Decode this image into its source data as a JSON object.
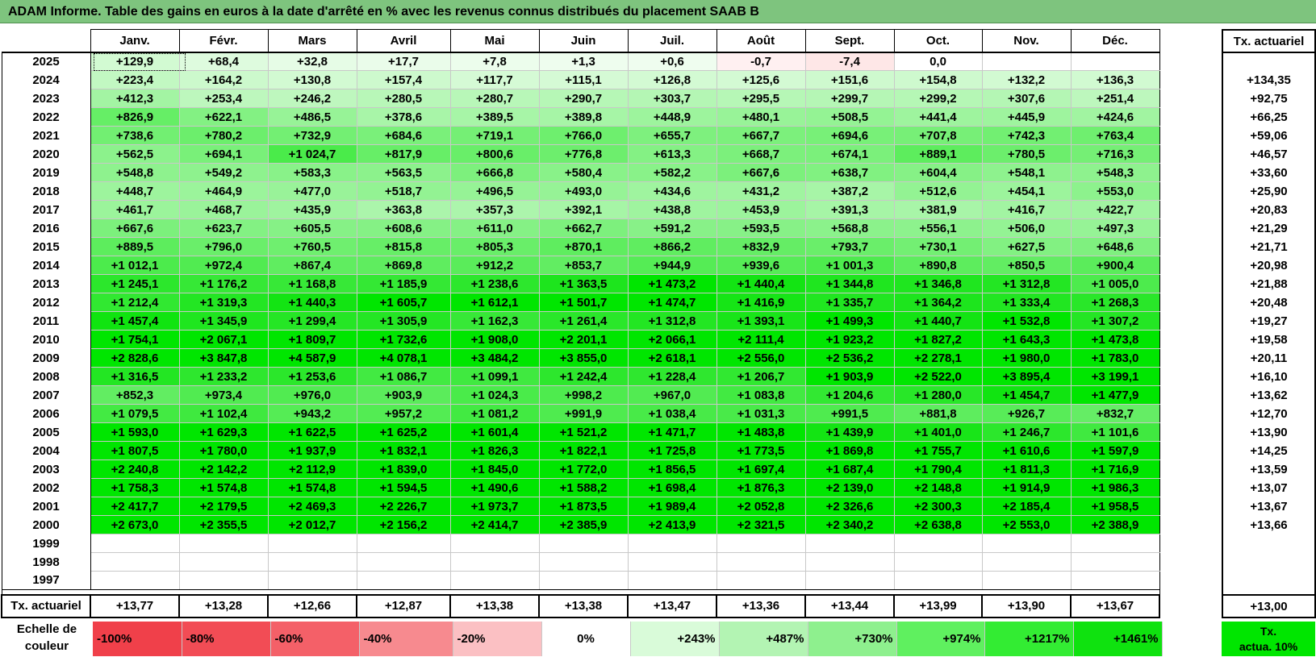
{
  "title": "ADAM Informe. Table des gains en euros à la date d'arrêté en % avec les revenus connus distribués du placement SAAB B",
  "months": [
    "Janv.",
    "Févr.",
    "Mars",
    "Avril",
    "Mai",
    "Juin",
    "Juil.",
    "Août",
    "Sept.",
    "Oct.",
    "Nov.",
    "Déc."
  ],
  "tx_header": "Tx. actuariel",
  "footer_label": "Tx. actuariel",
  "rows": [
    {
      "year": "2025",
      "values": [
        "+129,9",
        "+68,4",
        "+32,8",
        "+17,7",
        "+7,8",
        "+1,3",
        "+0,6",
        "-0,7",
        "-7,4",
        "0,0",
        "",
        ""
      ],
      "tx": ""
    },
    {
      "year": "2024",
      "values": [
        "+223,4",
        "+164,2",
        "+130,8",
        "+157,4",
        "+117,7",
        "+115,1",
        "+126,8",
        "+125,6",
        "+151,6",
        "+154,8",
        "+132,2",
        "+136,3"
      ],
      "tx": "+134,35"
    },
    {
      "year": "2023",
      "values": [
        "+412,3",
        "+253,4",
        "+246,2",
        "+280,5",
        "+280,7",
        "+290,7",
        "+303,7",
        "+295,5",
        "+299,7",
        "+299,2",
        "+307,6",
        "+251,4"
      ],
      "tx": "+92,75"
    },
    {
      "year": "2022",
      "values": [
        "+826,9",
        "+622,1",
        "+486,5",
        "+378,6",
        "+389,5",
        "+389,8",
        "+448,9",
        "+480,1",
        "+508,5",
        "+441,4",
        "+445,9",
        "+424,6"
      ],
      "tx": "+66,25"
    },
    {
      "year": "2021",
      "values": [
        "+738,6",
        "+780,2",
        "+732,9",
        "+684,6",
        "+719,1",
        "+766,0",
        "+655,7",
        "+667,7",
        "+694,6",
        "+707,8",
        "+742,3",
        "+763,4"
      ],
      "tx": "+59,06"
    },
    {
      "year": "2020",
      "values": [
        "+562,5",
        "+694,1",
        "+1 024,7",
        "+817,9",
        "+800,6",
        "+776,8",
        "+613,3",
        "+668,7",
        "+674,1",
        "+889,1",
        "+780,5",
        "+716,3"
      ],
      "tx": "+46,57"
    },
    {
      "year": "2019",
      "values": [
        "+548,8",
        "+549,2",
        "+583,3",
        "+563,5",
        "+666,8",
        "+580,4",
        "+582,2",
        "+667,6",
        "+638,7",
        "+604,4",
        "+548,1",
        "+548,3"
      ],
      "tx": "+33,60"
    },
    {
      "year": "2018",
      "values": [
        "+448,7",
        "+464,9",
        "+477,0",
        "+518,7",
        "+496,5",
        "+493,0",
        "+434,6",
        "+431,2",
        "+387,2",
        "+512,6",
        "+454,1",
        "+553,0"
      ],
      "tx": "+25,90"
    },
    {
      "year": "2017",
      "values": [
        "+461,7",
        "+468,7",
        "+435,9",
        "+363,8",
        "+357,3",
        "+392,1",
        "+438,8",
        "+453,9",
        "+391,3",
        "+381,9",
        "+416,7",
        "+422,7"
      ],
      "tx": "+20,83"
    },
    {
      "year": "2016",
      "values": [
        "+667,6",
        "+623,7",
        "+605,5",
        "+608,6",
        "+611,0",
        "+662,7",
        "+591,2",
        "+593,5",
        "+568,8",
        "+556,1",
        "+506,0",
        "+497,3"
      ],
      "tx": "+21,29"
    },
    {
      "year": "2015",
      "values": [
        "+889,5",
        "+796,0",
        "+760,5",
        "+815,8",
        "+805,3",
        "+870,1",
        "+866,2",
        "+832,9",
        "+793,7",
        "+730,1",
        "+627,5",
        "+648,6"
      ],
      "tx": "+21,71"
    },
    {
      "year": "2014",
      "values": [
        "+1 012,1",
        "+972,4",
        "+867,4",
        "+869,8",
        "+912,2",
        "+853,7",
        "+944,9",
        "+939,6",
        "+1 001,3",
        "+890,8",
        "+850,5",
        "+900,4"
      ],
      "tx": "+20,98"
    },
    {
      "year": "2013",
      "values": [
        "+1 245,1",
        "+1 176,2",
        "+1 168,8",
        "+1 185,9",
        "+1 238,6",
        "+1 363,5",
        "+1 473,2",
        "+1 440,4",
        "+1 344,8",
        "+1 346,8",
        "+1 312,8",
        "+1 005,0"
      ],
      "tx": "+21,88"
    },
    {
      "year": "2012",
      "values": [
        "+1 212,4",
        "+1 319,3",
        "+1 440,3",
        "+1 605,7",
        "+1 612,1",
        "+1 501,7",
        "+1 474,7",
        "+1 416,9",
        "+1 335,7",
        "+1 364,2",
        "+1 333,4",
        "+1 268,3"
      ],
      "tx": "+20,48"
    },
    {
      "year": "2011",
      "values": [
        "+1 457,4",
        "+1 345,9",
        "+1 299,4",
        "+1 305,9",
        "+1 162,3",
        "+1 261,4",
        "+1 312,8",
        "+1 393,1",
        "+1 499,3",
        "+1 440,7",
        "+1 532,8",
        "+1 307,2"
      ],
      "tx": "+19,27"
    },
    {
      "year": "2010",
      "values": [
        "+1 754,1",
        "+2 067,1",
        "+1 809,7",
        "+1 732,6",
        "+1 908,0",
        "+2 201,1",
        "+2 066,1",
        "+2 111,4",
        "+1 923,2",
        "+1 827,2",
        "+1 643,3",
        "+1 473,8"
      ],
      "tx": "+19,58"
    },
    {
      "year": "2009",
      "values": [
        "+2 828,6",
        "+3 847,8",
        "+4 587,9",
        "+4 078,1",
        "+3 484,2",
        "+3 855,0",
        "+2 618,1",
        "+2 556,0",
        "+2 536,2",
        "+2 278,1",
        "+1 980,0",
        "+1 783,0"
      ],
      "tx": "+20,11"
    },
    {
      "year": "2008",
      "values": [
        "+1 316,5",
        "+1 233,2",
        "+1 253,6",
        "+1 086,7",
        "+1 099,1",
        "+1 242,4",
        "+1 228,4",
        "+1 206,7",
        "+1 903,9",
        "+2 522,0",
        "+3 895,4",
        "+3 199,1"
      ],
      "tx": "+16,10"
    },
    {
      "year": "2007",
      "values": [
        "+852,3",
        "+973,4",
        "+976,0",
        "+903,9",
        "+1 024,3",
        "+998,2",
        "+967,0",
        "+1 083,8",
        "+1 204,6",
        "+1 280,0",
        "+1 454,7",
        "+1 477,9"
      ],
      "tx": "+13,62"
    },
    {
      "year": "2006",
      "values": [
        "+1 079,5",
        "+1 102,4",
        "+943,2",
        "+957,2",
        "+1 081,2",
        "+991,9",
        "+1 038,4",
        "+1 031,3",
        "+991,5",
        "+881,8",
        "+926,7",
        "+832,7"
      ],
      "tx": "+12,70"
    },
    {
      "year": "2005",
      "values": [
        "+1 593,0",
        "+1 629,3",
        "+1 622,5",
        "+1 625,2",
        "+1 601,4",
        "+1 521,2",
        "+1 471,7",
        "+1 483,8",
        "+1 439,9",
        "+1 401,0",
        "+1 246,7",
        "+1 101,6"
      ],
      "tx": "+13,90"
    },
    {
      "year": "2004",
      "values": [
        "+1 807,5",
        "+1 780,0",
        "+1 937,9",
        "+1 832,1",
        "+1 826,3",
        "+1 822,1",
        "+1 725,8",
        "+1 773,5",
        "+1 869,8",
        "+1 755,7",
        "+1 610,6",
        "+1 597,9"
      ],
      "tx": "+14,25"
    },
    {
      "year": "2003",
      "values": [
        "+2 240,8",
        "+2 142,2",
        "+2 112,9",
        "+1 839,0",
        "+1 845,0",
        "+1 772,0",
        "+1 856,5",
        "+1 697,4",
        "+1 687,4",
        "+1 790,4",
        "+1 811,3",
        "+1 716,9"
      ],
      "tx": "+13,59"
    },
    {
      "year": "2002",
      "values": [
        "+1 758,3",
        "+1 574,8",
        "+1 574,8",
        "+1 594,5",
        "+1 490,6",
        "+1 588,2",
        "+1 698,4",
        "+1 876,3",
        "+2 139,0",
        "+2 148,8",
        "+1 914,9",
        "+1 986,3"
      ],
      "tx": "+13,07"
    },
    {
      "year": "2001",
      "values": [
        "+2 417,7",
        "+2 179,5",
        "+2 469,3",
        "+2 226,7",
        "+1 973,7",
        "+1 873,5",
        "+1 989,4",
        "+2 052,8",
        "+2 326,6",
        "+2 300,3",
        "+2 185,4",
        "+1 958,5"
      ],
      "tx": "+13,67"
    },
    {
      "year": "2000",
      "values": [
        "+2 673,0",
        "+2 355,5",
        "+2 012,7",
        "+2 156,2",
        "+2 414,7",
        "+2 385,9",
        "+2 413,9",
        "+2 321,5",
        "+2 340,2",
        "+2 638,8",
        "+2 553,0",
        "+2 388,9"
      ],
      "tx": "+13,66"
    },
    {
      "year": "1999",
      "values": [
        "",
        "",
        "",
        "",
        "",
        "",
        "",
        "",
        "",
        "",
        "",
        ""
      ],
      "tx": ""
    },
    {
      "year": "1998",
      "values": [
        "",
        "",
        "",
        "",
        "",
        "",
        "",
        "",
        "",
        "",
        "",
        ""
      ],
      "tx": ""
    },
    {
      "year": "1997",
      "values": [
        "",
        "",
        "",
        "",
        "",
        "",
        "",
        "",
        "",
        "",
        "",
        ""
      ],
      "tx": ""
    }
  ],
  "footer_values": [
    "+13,77",
    "+13,28",
    "+12,66",
    "+12,87",
    "+13,38",
    "+13,38",
    "+13,47",
    "+13,36",
    "+13,44",
    "+13,99",
    "+13,90",
    "+13,67"
  ],
  "footer_tx": "+13,00",
  "scale": {
    "label": "Echelle de couleur",
    "items": [
      {
        "label": "-100%",
        "color": "#f0404a",
        "kind": "neg"
      },
      {
        "label": "-80%",
        "color": "#f24c55",
        "kind": "neg"
      },
      {
        "label": "-60%",
        "color": "#f46068",
        "kind": "neg"
      },
      {
        "label": "-40%",
        "color": "#f78a8f",
        "kind": "neg"
      },
      {
        "label": "-20%",
        "color": "#fbc0c3",
        "kind": "neg"
      },
      {
        "label": "0%",
        "color": "#ffffff",
        "kind": "zero"
      },
      {
        "label": "+243%",
        "color": "#d9fbd9",
        "kind": "pos"
      },
      {
        "label": "+487%",
        "color": "#b3f4b3",
        "kind": "pos"
      },
      {
        "label": "+730%",
        "color": "#8ef08e",
        "kind": "pos"
      },
      {
        "label": "+974%",
        "color": "#5ff05f",
        "kind": "pos"
      },
      {
        "label": "+1217%",
        "color": "#33ec33",
        "kind": "pos"
      },
      {
        "label": "+1461%",
        "color": "#0fe20f",
        "kind": "pos"
      }
    ],
    "tx_label_line1": "Tx.",
    "tx_label_line2": "actua. 10%",
    "tx_color": "#00e600"
  }
}
